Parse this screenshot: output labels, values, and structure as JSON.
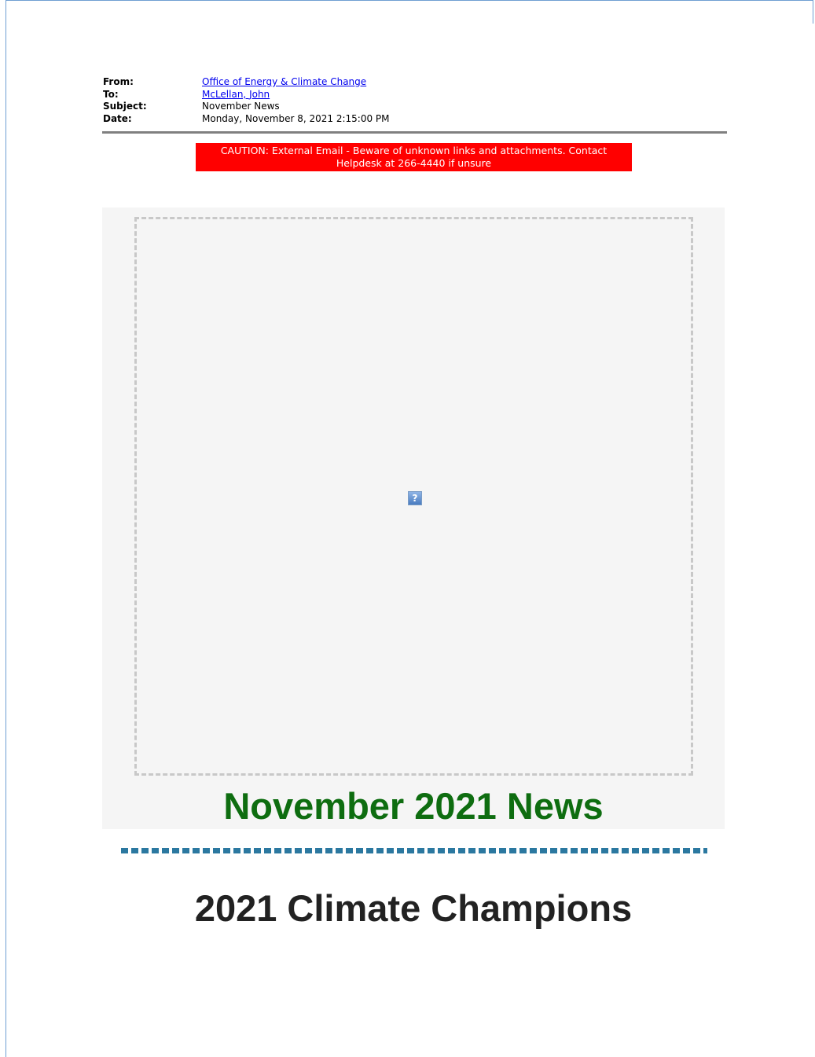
{
  "email_header": {
    "from_label": "From:",
    "from_value": "Office of Energy & Climate Change",
    "to_label": "To:",
    "to_value": "McLellan, John",
    "subject_label": "Subject:",
    "subject_value": "November News",
    "date_label": "Date:",
    "date_value": "Monday, November 8, 2021 2:15:00 PM"
  },
  "caution_banner": {
    "line1": "CAUTION: External Email - Beware of unknown links and attachments. Contact",
    "line2": "Helpdesk at 266-4440 if unsure",
    "color": "#ff0000"
  },
  "news": {
    "broken_image_glyph": "?",
    "title": "November 2021 News",
    "title_color": "#0e6d10"
  },
  "section": {
    "title": "2021 Climate Champions"
  },
  "colors": {
    "divider": "#2b78a0",
    "panel_background": "#f5f5f5"
  },
  "icons": {
    "broken_image": "broken-image-icon"
  }
}
